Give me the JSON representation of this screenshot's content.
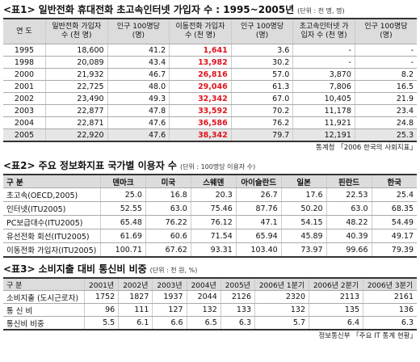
{
  "tables": [
    {
      "title": "<표1> 일반전화 휴대전화 초고속인터넷 가입자 수 : 1995~2005년",
      "unit": "(단위 : 천 명, 명)",
      "header": [
        "연 도",
        "일반전화 가입자 수 (천 명)",
        "인구 100명당 (명)",
        "이동전화 가입자 수 (천 명)",
        "인구 100명당 (명)",
        "초고속인터넷 가입자 수 (천 명)",
        "인구 100명당 (명)"
      ],
      "rows": [
        [
          "1995",
          "18,600",
          "41.2",
          "1,641",
          "3.6",
          "-",
          "-"
        ],
        [
          "1998",
          "20,089",
          "43.4",
          "13,982",
          "30.2",
          "-",
          "-"
        ],
        [
          "2000",
          "21,932",
          "46.7",
          "26,816",
          "57.0",
          "3,870",
          "8.2"
        ],
        [
          "2001",
          "22,725",
          "48.0",
          "29,046",
          "61.3",
          "7,806",
          "16.5"
        ],
        [
          "2002",
          "23,490",
          "49.3",
          "32,342",
          "67.0",
          "10,405",
          "21.9"
        ],
        [
          "2003",
          "22,877",
          "47.8",
          "33,592",
          "70.2",
          "11,178",
          "23.4"
        ],
        [
          "2004",
          "22,871",
          "47.6",
          "36,586",
          "76.2",
          "11,921",
          "24.8"
        ],
        [
          "2005",
          "22,920",
          "47.6",
          "38,342",
          "79.7",
          "12,191",
          "25.3"
        ]
      ],
      "source": "통계청 「2006 한국의 사회지표」"
    },
    {
      "title": "<표2> 주요 정보화지표 국가별 이용자 수",
      "unit": "(단위 : 100명당 이용자 수)",
      "header": [
        "구 분",
        "덴마크",
        "미국",
        "스웨덴",
        "아이슬란드",
        "일본",
        "핀란드",
        "한국"
      ],
      "rows": [
        [
          "초고속(OECD,2005)",
          "25.0",
          "16.8",
          "20.3",
          "26.7",
          "17.6",
          "22.53",
          "25.4"
        ],
        [
          "인터넷(ITU2005)",
          "52.55",
          "63.0",
          "75.46",
          "87.76",
          "50.20",
          "63.0",
          "68.35"
        ],
        [
          "PC보급대수(ITU2005)",
          "65.48",
          "76.22",
          "76.12",
          "47.1",
          "54.15",
          "48.22",
          "54.49"
        ],
        [
          "유선전화 회선(ITU2005)",
          "61.69",
          "60.6",
          "71.54",
          "65.94",
          "45.89",
          "40.39",
          "49.17"
        ],
        [
          "이동전화 가입자(ITU2005)",
          "100.71",
          "67.62",
          "93.31",
          "103.40",
          "73.97",
          "99.66",
          "79.39"
        ]
      ]
    },
    {
      "title": "<표3> 소비지출 대비 통신비 비중",
      "unit": "(단위 : 천 원, %)",
      "header": [
        "구 분",
        "2001년",
        "2002년",
        "2003년",
        "2004년",
        "2005년",
        "2006년 1분기",
        "2006년 2분기",
        "2006년 3분기"
      ],
      "rows": [
        [
          "소비지출 (도시근로자)",
          "1752",
          "1827",
          "1937",
          "2044",
          "2126",
          "2320",
          "2113",
          "2161"
        ],
        [
          "통 신 비",
          "96",
          "111",
          "127",
          "132",
          "133",
          "132",
          "135",
          "136"
        ],
        [
          "통신비 비중",
          "5.5",
          "6.1",
          "6.6",
          "6.5",
          "6.3",
          "5.7",
          "6.4",
          "6.3"
        ]
      ],
      "source": "정보통신부 「주요 IT 통계 현황」"
    }
  ]
}
